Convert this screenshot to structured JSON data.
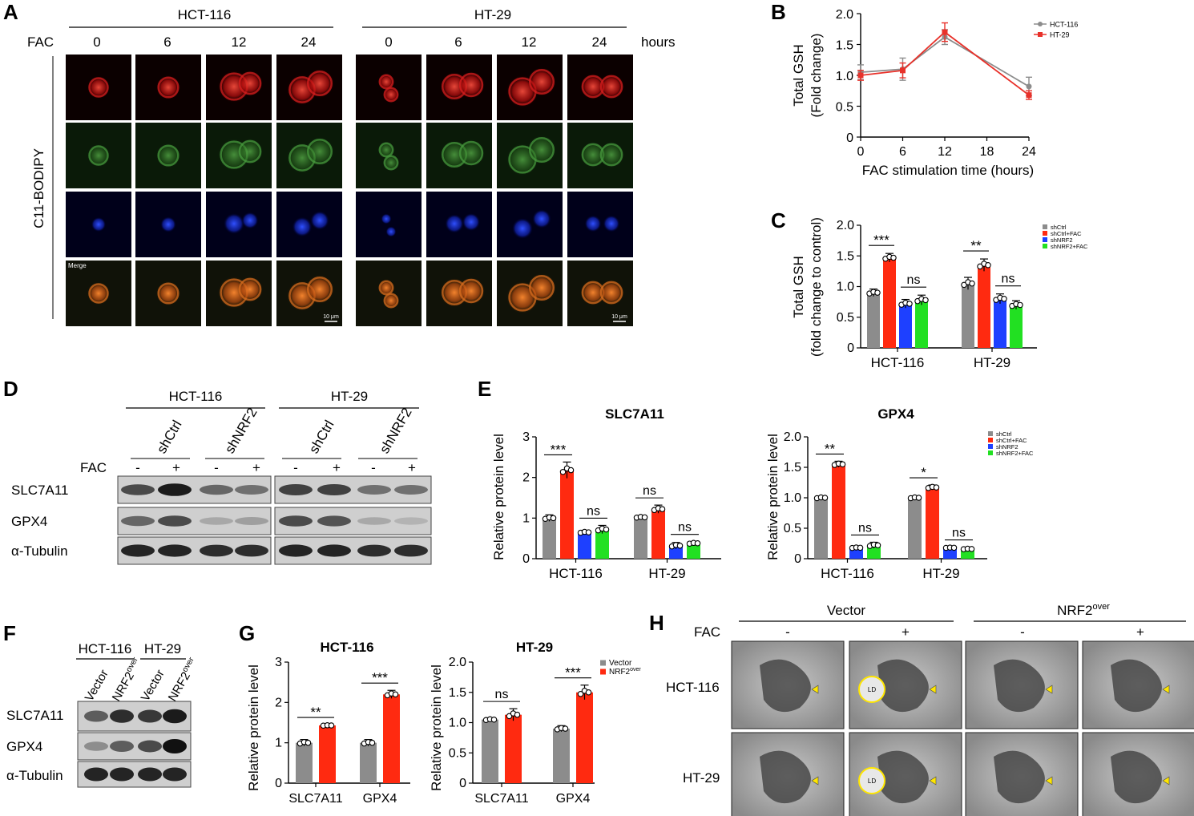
{
  "panel_letters": [
    "A",
    "B",
    "C",
    "D",
    "E",
    "F",
    "G",
    "H"
  ],
  "panelA": {
    "groups": [
      "HCT-116",
      "HT-29"
    ],
    "row_label": "FAC",
    "times": [
      "0",
      "6",
      "12",
      "24"
    ],
    "unit": "hours",
    "stain_label": "C11-BODIPY",
    "merge_label": "Merge",
    "scale_bar": "10 μm"
  },
  "panelD": {
    "groups": [
      "HCT-116",
      "HT-29"
    ],
    "conditions": [
      "shCtrl",
      "shNRF2",
      "shCtrl",
      "shNRF2"
    ],
    "fac_label": "FAC",
    "fac_marks": [
      "-",
      "+",
      "-",
      "+",
      "-",
      "+",
      "-",
      "+"
    ],
    "proteins": [
      "SLC7A11",
      "GPX4",
      "α-Tubulin"
    ]
  },
  "panelF": {
    "groups": [
      "HCT-116",
      "HT-29"
    ],
    "lanes": [
      "Vector",
      "NRF2",
      "Vector",
      "NRF2"
    ],
    "lane_sup": "over",
    "proteins": [
      "SLC7A11",
      "GPX4",
      "α-Tubulin"
    ]
  },
  "panelH": {
    "groups": [
      "Vector",
      "NRF2"
    ],
    "group_sup": "over",
    "fac_label": "FAC",
    "fac_marks": [
      "-",
      "+",
      "-",
      "+"
    ],
    "rows": [
      "HCT-116",
      "HT-29"
    ],
    "ld_label": "LD"
  },
  "chart_data": [
    {
      "id": "B",
      "type": "line",
      "x": [
        0,
        6,
        12,
        24
      ],
      "xticks": [
        "0",
        "6",
        "12",
        "18",
        "24"
      ],
      "yticks": [
        "0",
        "0.5",
        "1.0",
        "1.5",
        "2.0"
      ],
      "xlabel": "FAC stimulation time (hours)",
      "ylabel": [
        "Total GSH",
        "(Fold change)"
      ],
      "xlim": [
        0,
        24
      ],
      "ylim": [
        0,
        2.0
      ],
      "series": [
        {
          "name": "HCT-116",
          "color": "#8c8c8c",
          "values": [
            1.05,
            1.1,
            1.62,
            0.82
          ],
          "err": [
            0.12,
            0.18,
            0.12,
            0.15
          ]
        },
        {
          "name": "HT-29",
          "color": "#e8312a",
          "values": [
            1.0,
            1.08,
            1.7,
            0.68
          ],
          "err": [
            0.08,
            0.12,
            0.15,
            0.07
          ]
        }
      ]
    },
    {
      "id": "C",
      "type": "bar",
      "categories": [
        "HCT-116",
        "HT-29"
      ],
      "yticks": [
        "0",
        "0.5",
        "1.0",
        "1.5",
        "2.0"
      ],
      "ylabel": [
        "Total GSH",
        "(fold change to control)"
      ],
      "ylim": [
        0,
        2.0
      ],
      "series": [
        {
          "name": "shCtrl",
          "color": "#8c8c8c",
          "values": [
            0.9,
            1.05
          ],
          "err": [
            0.06,
            0.1
          ]
        },
        {
          "name": "shCtrl+FAC",
          "color": "#ff2a10",
          "values": [
            1.47,
            1.35
          ],
          "err": [
            0.07,
            0.1
          ]
        },
        {
          "name": "shNRF2",
          "color": "#1e40ff",
          "values": [
            0.72,
            0.8
          ],
          "err": [
            0.07,
            0.08
          ]
        },
        {
          "name": "shNRF2+FAC",
          "color": "#22e022",
          "values": [
            0.78,
            0.7
          ],
          "err": [
            0.08,
            0.07
          ]
        }
      ],
      "significance": [
        "***",
        "ns",
        "**",
        "ns"
      ]
    },
    {
      "id": "E1",
      "type": "bar",
      "title": "SLC7A11",
      "categories": [
        "HCT-116",
        "HT-29"
      ],
      "yticks": [
        "0",
        "1",
        "2",
        "3"
      ],
      "ylabel": "Relative protein level",
      "ylim": [
        0,
        3
      ],
      "series": [
        {
          "name": "shCtrl",
          "color": "#8c8c8c",
          "values": [
            1.0,
            1.02
          ],
          "err": [
            0.08,
            0.04
          ]
        },
        {
          "name": "shCtrl+FAC",
          "color": "#ff2a10",
          "values": [
            2.18,
            1.22
          ],
          "err": [
            0.2,
            0.1
          ]
        },
        {
          "name": "shNRF2",
          "color": "#1e40ff",
          "values": [
            0.65,
            0.32
          ],
          "err": [
            0.05,
            0.08
          ]
        },
        {
          "name": "shNRF2+FAC",
          "color": "#22e022",
          "values": [
            0.72,
            0.38
          ],
          "err": [
            0.1,
            0.04
          ]
        }
      ],
      "significance": [
        "***",
        "ns",
        "ns",
        "ns"
      ]
    },
    {
      "id": "E2",
      "type": "bar",
      "title": "GPX4",
      "categories": [
        "HCT-116",
        "HT-29"
      ],
      "yticks": [
        "0",
        "0.5",
        "1.0",
        "1.5",
        "2.0"
      ],
      "ylabel": "Relative protein level",
      "ylim": [
        0,
        2.0
      ],
      "series": [
        {
          "name": "shCtrl",
          "color": "#8c8c8c",
          "values": [
            1.0,
            1.0
          ],
          "err": [
            0.03,
            0.03
          ]
        },
        {
          "name": "shCtrl+FAC",
          "color": "#ff2a10",
          "values": [
            1.55,
            1.17
          ],
          "err": [
            0.05,
            0.04
          ]
        },
        {
          "name": "shNRF2",
          "color": "#1e40ff",
          "values": [
            0.18,
            0.18
          ],
          "err": [
            0.02,
            0.01
          ]
        },
        {
          "name": "shNRF2+FAC",
          "color": "#22e022",
          "values": [
            0.22,
            0.16
          ],
          "err": [
            0.05,
            0.02
          ]
        }
      ],
      "significance": [
        "**",
        "ns",
        "*",
        "ns"
      ]
    },
    {
      "id": "G1",
      "type": "bar",
      "title": "HCT-116",
      "categories": [
        "SLC7A11",
        "GPX4"
      ],
      "yticks": [
        "0",
        "1",
        "2",
        "3"
      ],
      "ylabel": "Relative protein level",
      "ylim": [
        0,
        3
      ],
      "series": [
        {
          "name": "Vector",
          "color": "#8c8c8c",
          "values": [
            1.0,
            1.0
          ],
          "err": [
            0.08,
            0.08
          ]
        },
        {
          "name": "NRF2",
          "color": "#ff2a10",
          "values": [
            1.43,
            2.2
          ],
          "err": [
            0.02,
            0.1
          ]
        }
      ],
      "legend_sup": "over",
      "significance": [
        "**",
        "***"
      ]
    },
    {
      "id": "G2",
      "type": "bar",
      "title": "HT-29",
      "categories": [
        "SLC7A11",
        "GPX4"
      ],
      "yticks": [
        "0",
        "0.5",
        "1.0",
        "1.5",
        "2.0"
      ],
      "ylabel": "Relative protein level",
      "ylim": [
        0,
        2.0
      ],
      "series": [
        {
          "name": "Vector",
          "color": "#8c8c8c",
          "values": [
            1.05,
            0.9
          ],
          "err": [
            0.03,
            0.05
          ]
        },
        {
          "name": "NRF2",
          "color": "#ff2a10",
          "values": [
            1.13,
            1.5
          ],
          "err": [
            0.1,
            0.12
          ]
        }
      ],
      "legend_sup": "over",
      "significance": [
        "ns",
        "***"
      ]
    }
  ]
}
